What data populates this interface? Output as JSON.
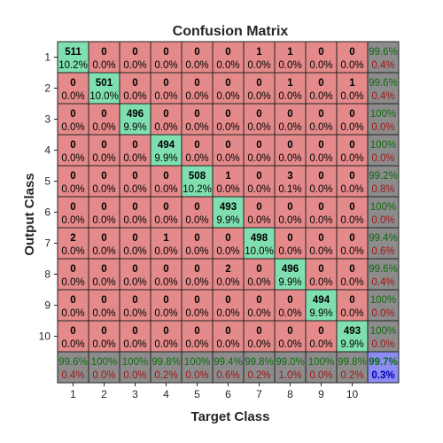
{
  "chart_data": {
    "type": "heatmap",
    "title": "Confusion Matrix",
    "xlabel": "Target Class",
    "ylabel": "Output Class",
    "x_tick_labels": [
      "1",
      "2",
      "3",
      "4",
      "5",
      "6",
      "7",
      "8",
      "9",
      "10"
    ],
    "y_tick_labels": [
      "1",
      "2",
      "3",
      "4",
      "5",
      "6",
      "7",
      "8",
      "9",
      "10"
    ],
    "matrix": [
      [
        511,
        0,
        0,
        0,
        0,
        0,
        1,
        1,
        0,
        0
      ],
      [
        0,
        501,
        0,
        0,
        0,
        0,
        0,
        1,
        0,
        1
      ],
      [
        0,
        0,
        496,
        0,
        0,
        0,
        0,
        0,
        0,
        0
      ],
      [
        0,
        0,
        0,
        494,
        0,
        0,
        0,
        0,
        0,
        0
      ],
      [
        0,
        0,
        0,
        0,
        508,
        1,
        0,
        3,
        0,
        0
      ],
      [
        0,
        0,
        0,
        0,
        0,
        493,
        0,
        0,
        0,
        0
      ],
      [
        2,
        0,
        0,
        1,
        0,
        0,
        498,
        0,
        0,
        0
      ],
      [
        0,
        0,
        0,
        0,
        0,
        2,
        0,
        496,
        0,
        0
      ],
      [
        0,
        0,
        0,
        0,
        0,
        0,
        0,
        0,
        494,
        0
      ],
      [
        0,
        0,
        0,
        0,
        0,
        0,
        0,
        0,
        0,
        493
      ]
    ],
    "matrix_percent": [
      [
        "10.2%",
        "0.0%",
        "0.0%",
        "0.0%",
        "0.0%",
        "0.0%",
        "0.0%",
        "0.0%",
        "0.0%",
        "0.0%"
      ],
      [
        "0.0%",
        "10.0%",
        "0.0%",
        "0.0%",
        "0.0%",
        "0.0%",
        "0.0%",
        "0.0%",
        "0.0%",
        "0.0%"
      ],
      [
        "0.0%",
        "0.0%",
        "9.9%",
        "0.0%",
        "0.0%",
        "0.0%",
        "0.0%",
        "0.0%",
        "0.0%",
        "0.0%"
      ],
      [
        "0.0%",
        "0.0%",
        "0.0%",
        "9.9%",
        "0.0%",
        "0.0%",
        "0.0%",
        "0.0%",
        "0.0%",
        "0.0%"
      ],
      [
        "0.0%",
        "0.0%",
        "0.0%",
        "0.0%",
        "10.2%",
        "0.0%",
        "0.0%",
        "0.1%",
        "0.0%",
        "0.0%"
      ],
      [
        "0.0%",
        "0.0%",
        "0.0%",
        "0.0%",
        "0.0%",
        "9.9%",
        "0.0%",
        "0.0%",
        "0.0%",
        "0.0%"
      ],
      [
        "0.0%",
        "0.0%",
        "0.0%",
        "0.0%",
        "0.0%",
        "0.0%",
        "10.0%",
        "0.0%",
        "0.0%",
        "0.0%"
      ],
      [
        "0.0%",
        "0.0%",
        "0.0%",
        "0.0%",
        "0.0%",
        "0.0%",
        "0.0%",
        "9.9%",
        "0.0%",
        "0.0%"
      ],
      [
        "0.0%",
        "0.0%",
        "0.0%",
        "0.0%",
        "0.0%",
        "0.0%",
        "0.0%",
        "0.0%",
        "9.9%",
        "0.0%"
      ],
      [
        "0.0%",
        "0.0%",
        "0.0%",
        "0.0%",
        "0.0%",
        "0.0%",
        "0.0%",
        "0.0%",
        "0.0%",
        "9.9%"
      ]
    ],
    "row_summary": [
      [
        "99.6%",
        "0.4%"
      ],
      [
        "99.6%",
        "0.4%"
      ],
      [
        "100%",
        "0.0%"
      ],
      [
        "100%",
        "0.0%"
      ],
      [
        "99.2%",
        "0.8%"
      ],
      [
        "100%",
        "0.0%"
      ],
      [
        "99.4%",
        "0.6%"
      ],
      [
        "99.6%",
        "0.4%"
      ],
      [
        "100%",
        "0.0%"
      ],
      [
        "100%",
        "0.0%"
      ]
    ],
    "column_summary": [
      [
        "99.6%",
        "0.4%"
      ],
      [
        "100%",
        "0.0%"
      ],
      [
        "100%",
        "0.0%"
      ],
      [
        "99.8%",
        "0.2%"
      ],
      [
        "100%",
        "0.0%"
      ],
      [
        "99.4%",
        "0.6%"
      ],
      [
        "99.8%",
        "0.2%"
      ],
      [
        "99.0%",
        "1.0%"
      ],
      [
        "100%",
        "0.0%"
      ],
      [
        "99.8%",
        "0.2%"
      ]
    ],
    "overall": [
      "99.7%",
      "0.3%"
    ],
    "colors": {
      "diagonal": "#7fdfb0",
      "off_diagonal": "#e58a8a",
      "summary": "#8c8c8c",
      "overall": "#8c8cf2",
      "summary_good_text": "#0f6b0f",
      "summary_bad_text": "#a31515",
      "overall_good_text": "#0f6b0f",
      "overall_bad_text": "#0000b0",
      "grid": "#222222",
      "text": "#262626"
    }
  }
}
